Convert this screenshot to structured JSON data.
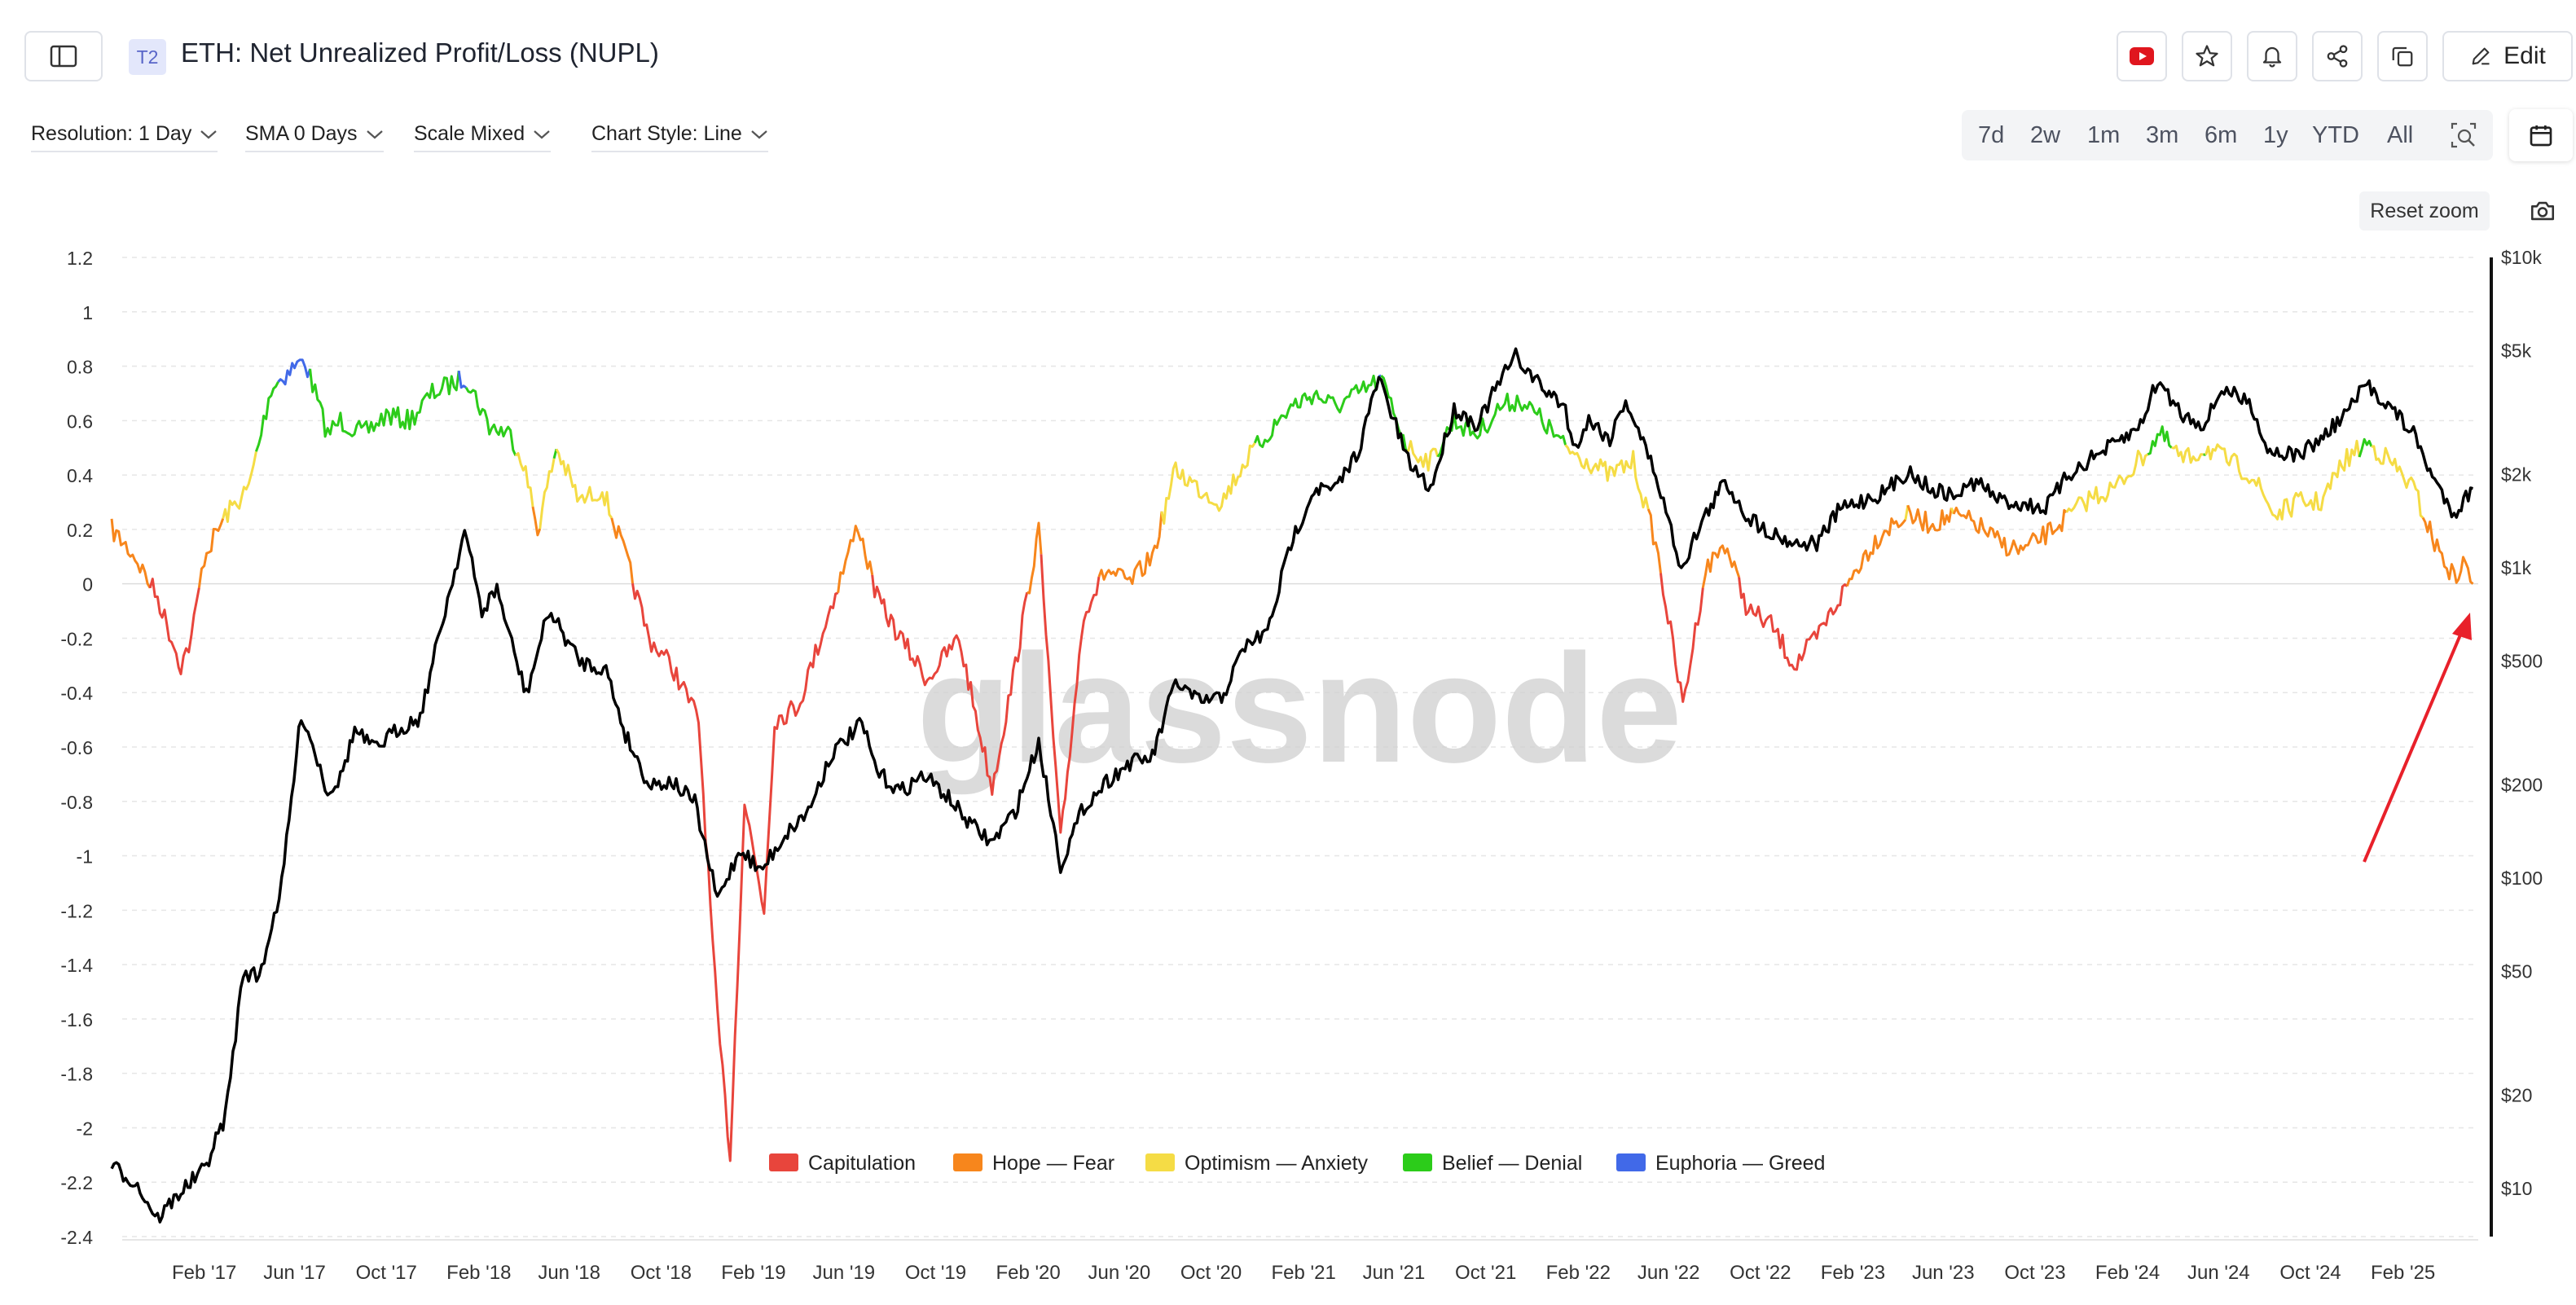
{
  "header": {
    "tier_badge": "T2",
    "title": "ETH: Net Unrealized Profit/Loss (NUPL)",
    "edit_label": "Edit"
  },
  "controls": {
    "resolution": "Resolution: 1 Day",
    "sma": "SMA 0 Days",
    "scale": "Scale Mixed",
    "chart_style": "Chart Style: Line"
  },
  "ranges": [
    "7d",
    "2w",
    "1m",
    "3m",
    "6m",
    "1y",
    "YTD",
    "All"
  ],
  "reset_zoom": "Reset zoom",
  "watermark": "glassnode",
  "colors": {
    "capitulation": "#e8453c",
    "hope_fear": "#f7861c",
    "optimism_anxiety": "#f5dc45",
    "belief_denial": "#2ccc1a",
    "euphoria_greed": "#4169e8",
    "price": "#000000",
    "annotation_arrow": "#e8202a",
    "youtube": "#e0161e"
  },
  "chart_data": {
    "type": "line",
    "title": "ETH: Net Unrealized Profit/Loss (NUPL)",
    "x_ticks": [
      "Feb '17",
      "Jun '17",
      "Oct '17",
      "Feb '18",
      "Jun '18",
      "Oct '18",
      "Feb '19",
      "Jun '19",
      "Oct '19",
      "Feb '20",
      "Jun '20",
      "Oct '20",
      "Feb '21",
      "Jun '21",
      "Oct '21",
      "Feb '22",
      "Jun '22",
      "Oct '22",
      "Feb '23",
      "Jun '23",
      "Oct '23",
      "Feb '24",
      "Jun '24",
      "Oct '24",
      "Feb '25"
    ],
    "y_left_ticks": [
      "1.2",
      "1",
      "0.8",
      "0.6",
      "0.4",
      "0.2",
      "0",
      "-0.2",
      "-0.4",
      "-0.6",
      "-0.8",
      "-1",
      "-1.2",
      "-1.4",
      "-1.6",
      "-1.8",
      "-2",
      "-2.2",
      "-2.4"
    ],
    "y_left_range": [
      -2.4,
      1.2
    ],
    "y_right_ticks": [
      "$10k",
      "$5k",
      "$2k",
      "$1k",
      "$500",
      "$200",
      "$100",
      "$50",
      "$20",
      "$10"
    ],
    "y_right_range": [
      7,
      10000
    ],
    "y_right_scale": "log",
    "grid": "horizontal dashed",
    "legend_position": "bottom-center",
    "legend": [
      {
        "label": "Capitulation",
        "color": "#e8453c"
      },
      {
        "label": "Hope — Fear",
        "color": "#f7861c"
      },
      {
        "label": "Optimism — Anxiety",
        "color": "#f5dc45"
      },
      {
        "label": "Belief — Denial",
        "color": "#2ccc1a"
      },
      {
        "label": "Euphoria — Greed",
        "color": "#4169e8"
      }
    ],
    "series": [
      {
        "color_by_value": true,
        "points": [
          [
            "2016-10-01",
            0.2
          ],
          [
            "2016-11-01",
            0.1
          ],
          [
            "2016-12-01",
            -0.05
          ],
          [
            "2017-01-01",
            -0.3
          ],
          [
            "2017-01-15",
            -0.2
          ],
          [
            "2017-02-01",
            0.1
          ],
          [
            "2017-03-01",
            0.25
          ],
          [
            "2017-04-01",
            0.35
          ],
          [
            "2017-05-01",
            0.72
          ],
          [
            "2017-06-01",
            0.8
          ],
          [
            "2017-06-15",
            0.82
          ],
          [
            "2017-07-15",
            0.55
          ],
          [
            "2017-08-01",
            0.6
          ],
          [
            "2017-09-01",
            0.55
          ],
          [
            "2017-10-01",
            0.62
          ],
          [
            "2017-11-01",
            0.6
          ],
          [
            "2017-12-01",
            0.7
          ],
          [
            "2018-01-15",
            0.76
          ],
          [
            "2018-02-15",
            0.58
          ],
          [
            "2018-03-15",
            0.55
          ],
          [
            "2018-04-01",
            0.45
          ],
          [
            "2018-04-20",
            0.2
          ],
          [
            "2018-05-15",
            0.5
          ],
          [
            "2018-06-15",
            0.3
          ],
          [
            "2018-07-15",
            0.35
          ],
          [
            "2018-08-15",
            0.1
          ],
          [
            "2018-09-15",
            -0.2
          ],
          [
            "2018-10-15",
            -0.3
          ],
          [
            "2018-11-20",
            -0.5
          ],
          [
            "2018-12-15",
            -1.6
          ],
          [
            "2019-01-01",
            -2.1
          ],
          [
            "2019-01-20",
            -0.8
          ],
          [
            "2019-02-15",
            -1.2
          ],
          [
            "2019-03-01",
            -0.5
          ],
          [
            "2019-04-01",
            -0.45
          ],
          [
            "2019-05-01",
            -0.2
          ],
          [
            "2019-06-20",
            0.22
          ],
          [
            "2019-07-15",
            -0.05
          ],
          [
            "2019-08-15",
            -0.2
          ],
          [
            "2019-09-20",
            -0.35
          ],
          [
            "2019-11-01",
            -0.2
          ],
          [
            "2019-12-15",
            -0.75
          ],
          [
            "2020-01-15",
            -0.3
          ],
          [
            "2020-02-15",
            0.2
          ],
          [
            "2020-03-15",
            -0.95
          ],
          [
            "2020-04-15",
            -0.1
          ],
          [
            "2020-05-15",
            0.05
          ],
          [
            "2020-06-15",
            0.0
          ],
          [
            "2020-07-15",
            0.1
          ],
          [
            "2020-08-15",
            0.42
          ],
          [
            "2020-09-15",
            0.35
          ],
          [
            "2020-10-15",
            0.3
          ],
          [
            "2020-11-15",
            0.45
          ],
          [
            "2020-12-15",
            0.55
          ],
          [
            "2021-01-15",
            0.65
          ],
          [
            "2021-02-15",
            0.7
          ],
          [
            "2021-03-15",
            0.65
          ],
          [
            "2021-04-15",
            0.7
          ],
          [
            "2021-05-15",
            0.75
          ],
          [
            "2021-06-20",
            0.5
          ],
          [
            "2021-07-20",
            0.45
          ],
          [
            "2021-08-20",
            0.6
          ],
          [
            "2021-09-20",
            0.55
          ],
          [
            "2021-10-20",
            0.65
          ],
          [
            "2021-11-15",
            0.68
          ],
          [
            "2021-12-15",
            0.6
          ],
          [
            "2022-01-15",
            0.5
          ],
          [
            "2022-02-15",
            0.45
          ],
          [
            "2022-03-15",
            0.4
          ],
          [
            "2022-04-15",
            0.45
          ],
          [
            "2022-05-15",
            0.15
          ],
          [
            "2022-06-20",
            -0.45
          ],
          [
            "2022-07-20",
            0.05
          ],
          [
            "2022-08-15",
            0.15
          ],
          [
            "2022-09-15",
            -0.1
          ],
          [
            "2022-10-15",
            -0.15
          ],
          [
            "2022-11-15",
            -0.3
          ],
          [
            "2022-12-15",
            -0.2
          ],
          [
            "2023-01-15",
            -0.05
          ],
          [
            "2023-02-15",
            0.1
          ],
          [
            "2023-03-15",
            0.2
          ],
          [
            "2023-04-15",
            0.25
          ],
          [
            "2023-05-15",
            0.22
          ],
          [
            "2023-06-15",
            0.25
          ],
          [
            "2023-07-15",
            0.22
          ],
          [
            "2023-08-15",
            0.15
          ],
          [
            "2023-09-15",
            0.12
          ],
          [
            "2023-10-15",
            0.18
          ],
          [
            "2023-11-15",
            0.25
          ],
          [
            "2023-12-15",
            0.32
          ],
          [
            "2024-01-15",
            0.35
          ],
          [
            "2024-02-15",
            0.45
          ],
          [
            "2024-03-15",
            0.55
          ],
          [
            "2024-04-15",
            0.45
          ],
          [
            "2024-05-15",
            0.5
          ],
          [
            "2024-06-15",
            0.45
          ],
          [
            "2024-07-15",
            0.4
          ],
          [
            "2024-08-15",
            0.25
          ],
          [
            "2024-09-15",
            0.3
          ],
          [
            "2024-10-15",
            0.3
          ],
          [
            "2024-11-15",
            0.45
          ],
          [
            "2024-12-15",
            0.52
          ],
          [
            "2025-01-15",
            0.45
          ],
          [
            "2025-02-15",
            0.35
          ],
          [
            "2025-03-15",
            0.15
          ],
          [
            "2025-04-10",
            0.02
          ],
          [
            "2025-04-25",
            0.08
          ],
          [
            "2025-05-05",
            0.0
          ]
        ]
      },
      {
        "name": "Price",
        "axis": "right",
        "color": "#000000",
        "points": [
          [
            "2016-10-01",
            11.8
          ],
          [
            "2016-11-01",
            10.5
          ],
          [
            "2016-12-01",
            8
          ],
          [
            "2017-01-01",
            9.8
          ],
          [
            "2017-02-01",
            11.5
          ],
          [
            "2017-03-01",
            17
          ],
          [
            "2017-03-25",
            50
          ],
          [
            "2017-04-15",
            48
          ],
          [
            "2017-05-15",
            95
          ],
          [
            "2017-06-10",
            340
          ],
          [
            "2017-06-25",
            270
          ],
          [
            "2017-07-15",
            190
          ],
          [
            "2017-08-01",
            210
          ],
          [
            "2017-08-20",
            300
          ],
          [
            "2017-09-15",
            260
          ],
          [
            "2017-10-15",
            300
          ],
          [
            "2017-11-15",
            330
          ],
          [
            "2017-12-15",
            680
          ],
          [
            "2018-01-13",
            1320
          ],
          [
            "2018-02-05",
            720
          ],
          [
            "2018-02-25",
            860
          ],
          [
            "2018-03-20",
            530
          ],
          [
            "2018-04-05",
            390
          ],
          [
            "2018-05-05",
            730
          ],
          [
            "2018-06-15",
            500
          ],
          [
            "2018-07-20",
            470
          ],
          [
            "2018-08-15",
            290
          ],
          [
            "2018-09-15",
            200
          ],
          [
            "2018-10-15",
            205
          ],
          [
            "2018-11-15",
            175
          ],
          [
            "2018-12-15",
            85
          ],
          [
            "2019-01-15",
            125
          ],
          [
            "2019-02-10",
            105
          ],
          [
            "2019-03-15",
            138
          ],
          [
            "2019-04-15",
            165
          ],
          [
            "2019-05-15",
            250
          ],
          [
            "2019-06-25",
            315
          ],
          [
            "2019-07-15",
            220
          ],
          [
            "2019-08-15",
            190
          ],
          [
            "2019-09-15",
            215
          ],
          [
            "2019-10-15",
            185
          ],
          [
            "2019-11-15",
            150
          ],
          [
            "2019-12-15",
            130
          ],
          [
            "2020-01-15",
            165
          ],
          [
            "2020-02-15",
            275
          ],
          [
            "2020-03-15",
            110
          ],
          [
            "2020-04-15",
            170
          ],
          [
            "2020-05-15",
            205
          ],
          [
            "2020-06-15",
            235
          ],
          [
            "2020-07-15",
            245
          ],
          [
            "2020-08-15",
            430
          ],
          [
            "2020-09-15",
            370
          ],
          [
            "2020-10-15",
            380
          ],
          [
            "2020-11-15",
            560
          ],
          [
            "2020-12-15",
            620
          ],
          [
            "2021-01-15",
            1200
          ],
          [
            "2021-02-15",
            1800
          ],
          [
            "2021-03-15",
            1780
          ],
          [
            "2021-04-15",
            2400
          ],
          [
            "2021-05-12",
            4100
          ],
          [
            "2021-06-20",
            2200
          ],
          [
            "2021-07-20",
            1800
          ],
          [
            "2021-08-20",
            3250
          ],
          [
            "2021-09-20",
            2900
          ],
          [
            "2021-10-20",
            4000
          ],
          [
            "2021-11-10",
            4800
          ],
          [
            "2021-12-15",
            3800
          ],
          [
            "2022-01-15",
            3300
          ],
          [
            "2022-01-25",
            2400
          ],
          [
            "2022-02-15",
            3000
          ],
          [
            "2022-03-15",
            2600
          ],
          [
            "2022-04-05",
            3500
          ],
          [
            "2022-05-15",
            2000
          ],
          [
            "2022-06-18",
            1000
          ],
          [
            "2022-07-15",
            1400
          ],
          [
            "2022-08-15",
            1900
          ],
          [
            "2022-09-15",
            1450
          ],
          [
            "2022-10-15",
            1300
          ],
          [
            "2022-11-15",
            1200
          ],
          [
            "2022-12-15",
            1200
          ],
          [
            "2023-01-15",
            1550
          ],
          [
            "2023-02-15",
            1650
          ],
          [
            "2023-03-15",
            1750
          ],
          [
            "2023-04-15",
            2050
          ],
          [
            "2023-05-15",
            1800
          ],
          [
            "2023-06-15",
            1700
          ],
          [
            "2023-07-15",
            1900
          ],
          [
            "2023-08-15",
            1650
          ],
          [
            "2023-09-15",
            1600
          ],
          [
            "2023-10-15",
            1560
          ],
          [
            "2023-11-15",
            2000
          ],
          [
            "2023-12-15",
            2250
          ],
          [
            "2024-01-15",
            2500
          ],
          [
            "2024-02-15",
            2800
          ],
          [
            "2024-03-12",
            4000
          ],
          [
            "2024-04-15",
            3100
          ],
          [
            "2024-05-15",
            2900
          ],
          [
            "2024-06-05",
            3800
          ],
          [
            "2024-07-15",
            3350
          ],
          [
            "2024-08-05",
            2400
          ],
          [
            "2024-09-15",
            2300
          ],
          [
            "2024-10-15",
            2600
          ],
          [
            "2024-11-15",
            3100
          ],
          [
            "2024-12-15",
            3900
          ],
          [
            "2025-01-15",
            3300
          ],
          [
            "2025-02-15",
            2700
          ],
          [
            "2025-03-15",
            1900
          ],
          [
            "2025-04-10",
            1500
          ],
          [
            "2025-05-05",
            1800
          ]
        ]
      }
    ]
  }
}
